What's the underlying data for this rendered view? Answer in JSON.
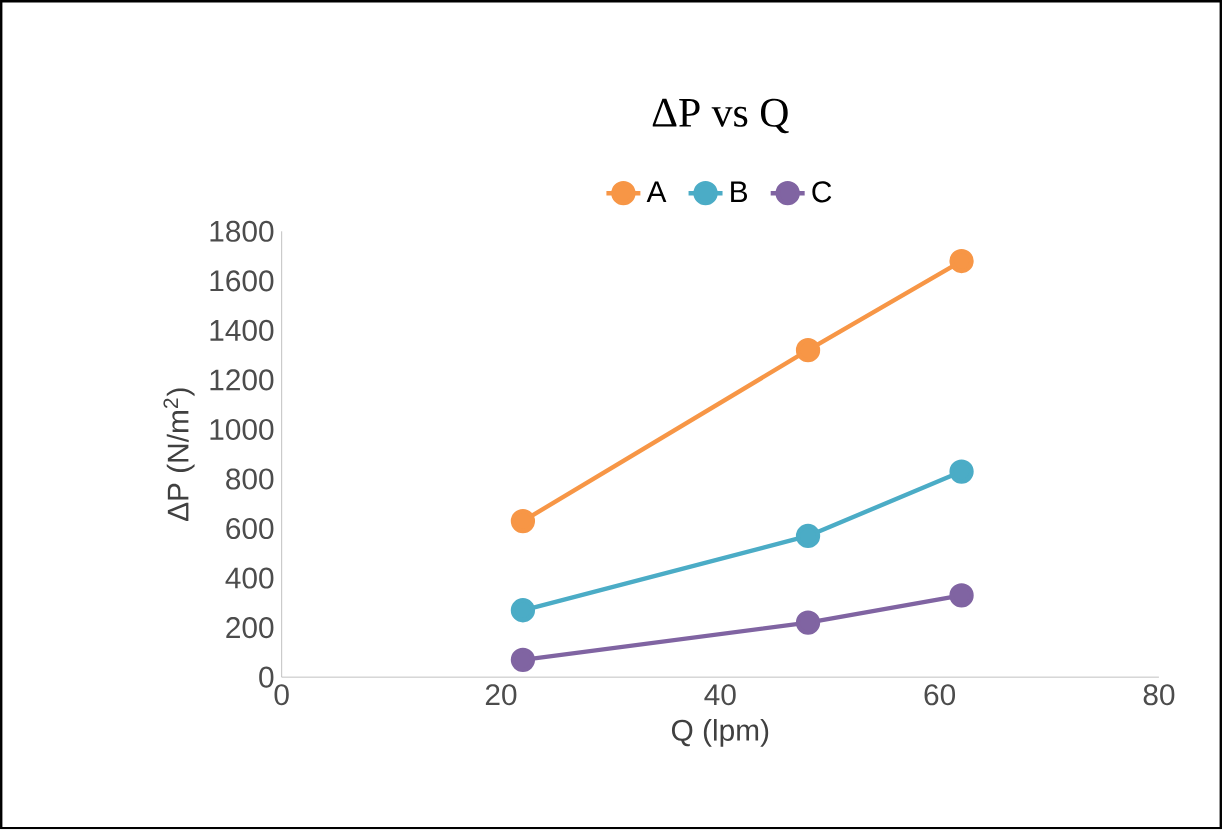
{
  "chart_data": {
    "type": "line",
    "title": "ΔP vs Q",
    "xlabel": "Q (lpm)",
    "ylabel": "ΔP (N/m$^{2}$)",
    "x": [
      22,
      48,
      62
    ],
    "series": [
      {
        "name": "A",
        "color": "#f79646",
        "values": [
          630,
          1320,
          1680
        ]
      },
      {
        "name": "B",
        "color": "#4bacc6",
        "values": [
          270,
          570,
          830
        ]
      },
      {
        "name": "C",
        "color": "#8064a2",
        "values": [
          70,
          220,
          330
        ]
      }
    ],
    "xlim": [
      0,
      80
    ],
    "xticks": [
      0,
      20,
      40,
      60,
      80
    ],
    "ylim": [
      0,
      1800
    ],
    "yticks": [
      0,
      200,
      400,
      600,
      800,
      1000,
      1200,
      1400,
      1600,
      1800
    ],
    "grid": false,
    "legend": "top",
    "marker": "circle",
    "line_style": "solid"
  }
}
